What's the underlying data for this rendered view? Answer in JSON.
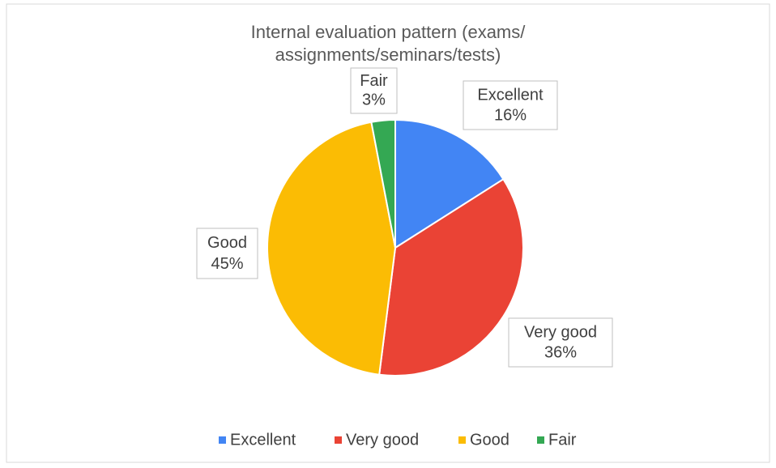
{
  "chart_data": {
    "type": "pie",
    "title": "Internal evaluation pattern (exams/ assignments/seminars/tests)",
    "categories": [
      "Excellent",
      "Very good",
      "Good",
      "Fair"
    ],
    "values": [
      16,
      36,
      45,
      3
    ],
    "value_labels": [
      "16%",
      "36%",
      "45%",
      "3%"
    ],
    "colors": [
      "#4285f4",
      "#ea4335",
      "#fbbc04",
      "#34a853"
    ],
    "legend": "bottom"
  }
}
